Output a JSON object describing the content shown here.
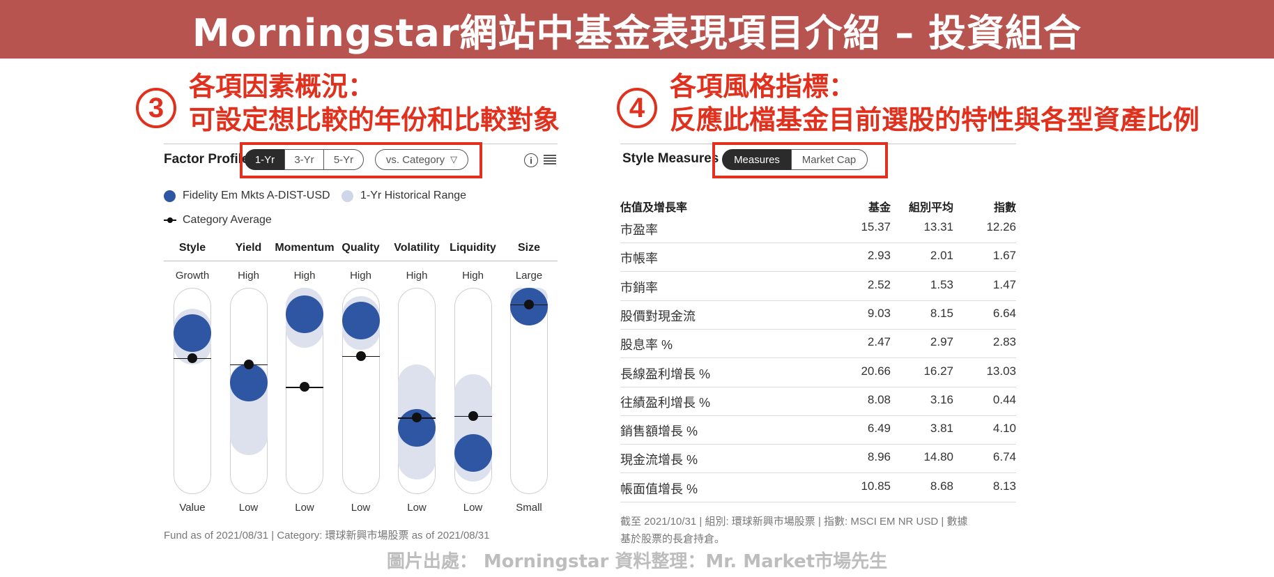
{
  "banner": {
    "title": "Morningstar網站中基金表現項目介紹 – 投資組合"
  },
  "annotation_left": {
    "number": "3",
    "line1": "各項因素概況：",
    "line2": "可設定想比較的年份和比較對象"
  },
  "annotation_right": {
    "number": "4",
    "line1": "各項風格指標：",
    "line2": "反應此檔基金目前選股的特性與各型資產比例"
  },
  "factor_profile": {
    "title": "Factor Profile",
    "periods": [
      "1-Yr",
      "3-Yr",
      "5-Yr"
    ],
    "active_period": "1-Yr",
    "compare_label": "vs. Category",
    "legend": {
      "fund": "Fidelity Em Mkts A-DIST-USD",
      "range": "1-Yr Historical Range",
      "average": "Category Average"
    },
    "colors": {
      "fund": "#2f56a3",
      "range": "#dde1ee",
      "average": "#111111"
    },
    "factors": [
      {
        "name": "Style",
        "top": "Growth",
        "bottom": "Value",
        "fund": 0.78,
        "range": [
          0.63,
          0.9
        ],
        "average": 0.66
      },
      {
        "name": "Yield",
        "top": "High",
        "bottom": "Low",
        "fund": 0.54,
        "range": [
          0.19,
          0.64
        ],
        "average": 0.63
      },
      {
        "name": "Momentum",
        "top": "High",
        "bottom": "Low",
        "fund": 0.87,
        "range": [
          0.71,
          1.0
        ],
        "average": 0.52
      },
      {
        "name": "Quality",
        "top": "High",
        "bottom": "Low",
        "fund": 0.84,
        "range": [
          0.7,
          0.96
        ],
        "average": 0.67
      },
      {
        "name": "Volatility",
        "top": "High",
        "bottom": "Low",
        "fund": 0.32,
        "range": [
          0.07,
          0.63
        ],
        "average": 0.37
      },
      {
        "name": "Liquidity",
        "top": "High",
        "bottom": "Low",
        "fund": 0.2,
        "range": [
          0.06,
          0.58
        ],
        "average": 0.38
      },
      {
        "name": "Size",
        "top": "Large",
        "bottom": "Small",
        "fund": 0.96,
        "range": [
          0.91,
          1.0
        ],
        "average": 0.92
      }
    ],
    "footnote": "Fund as of 2021/08/31 | Category: 環球新興市場股票 as of 2021/08/31"
  },
  "style_measures": {
    "title": "Style Measures",
    "tabs": [
      "Measures",
      "Market Cap"
    ],
    "active_tab": "Measures",
    "headers": {
      "label": "估值及增長率",
      "fund": "基金",
      "category": "組別平均",
      "index": "指數"
    },
    "rows": [
      {
        "label": "市盈率",
        "fund": "15.37",
        "category": "13.31",
        "index": "12.26"
      },
      {
        "label": "市帳率",
        "fund": "2.93",
        "category": "2.01",
        "index": "1.67"
      },
      {
        "label": "市銷率",
        "fund": "2.52",
        "category": "1.53",
        "index": "1.47"
      },
      {
        "label": "股價對現金流",
        "fund": "9.03",
        "category": "8.15",
        "index": "6.64"
      },
      {
        "label": "股息率 %",
        "fund": "2.47",
        "category": "2.97",
        "index": "2.83"
      },
      {
        "label": "長線盈利增長 %",
        "fund": "20.66",
        "category": "16.27",
        "index": "13.03"
      },
      {
        "label": "往績盈利增長 %",
        "fund": "8.08",
        "category": "3.16",
        "index": "0.44"
      },
      {
        "label": "銷售額增長 %",
        "fund": "6.49",
        "category": "3.81",
        "index": "4.10"
      },
      {
        "label": "現金流增長 %",
        "fund": "8.96",
        "category": "14.80",
        "index": "6.74"
      },
      {
        "label": "帳面值增長 %",
        "fund": "10.85",
        "category": "8.68",
        "index": "8.13"
      }
    ],
    "footnote_line1": "截至 2021/10/31 | 組別: 環球新興市場股票 | 指數: MSCI EM NR USD | 數據",
    "footnote_line2": "基於股票的長倉持倉。"
  },
  "credit": "圖片出處： Morningstar  資料整理：Mr. Market市場先生"
}
